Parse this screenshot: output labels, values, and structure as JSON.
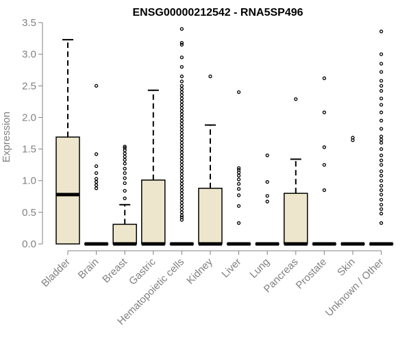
{
  "chart_data": {
    "type": "boxplot",
    "title": "ENSG00000212542 - RNA5SP496",
    "ylabel": "Expression",
    "xlabel": "",
    "ylim": [
      0,
      3.5
    ],
    "yticks": [
      "0.0",
      "0.5",
      "1.0",
      "1.5",
      "2.0",
      "2.5",
      "3.0",
      "3.5"
    ],
    "grid": false,
    "colors": {
      "box_fill": "#ede6cc",
      "stroke": "#000000",
      "axis_text": "#808080",
      "title_text": "#000000"
    },
    "categories": [
      "Bladder",
      "Brain",
      "Breast",
      "Gastric",
      "Hematopoietic cells",
      "Kidney",
      "Liver",
      "Lung",
      "Pancreas",
      "Prostate",
      "Skin",
      "Unknown / Other"
    ],
    "boxes": [
      {
        "min": 0,
        "q1": 0,
        "median": 0.78,
        "q3": 1.69,
        "max": 3.23,
        "outliers": []
      },
      {
        "min": 0,
        "q1": 0,
        "median": 0,
        "q3": 0,
        "max": 0,
        "outliers": [
          0.88,
          0.93,
          0.98,
          1.03,
          1.12,
          1.23,
          1.42,
          2.5
        ]
      },
      {
        "min": 0,
        "q1": 0,
        "median": 0,
        "q3": 0.31,
        "max": 0.62,
        "outliers": [
          0.72,
          0.84,
          0.96,
          1.04,
          1.12,
          1.19,
          1.27,
          1.33,
          1.38,
          1.43,
          1.48,
          1.52,
          1.54
        ]
      },
      {
        "min": 0,
        "q1": 0,
        "median": 0,
        "q3": 1.01,
        "max": 2.43,
        "outliers": []
      },
      {
        "min": 0,
        "q1": 0,
        "median": 0,
        "q3": 0,
        "max": 0,
        "outliers": [
          0.38,
          0.42,
          0.45,
          0.5,
          0.55,
          0.6,
          0.65,
          0.7,
          0.75,
          0.8,
          0.85,
          0.9,
          0.95,
          1.0,
          1.05,
          1.1,
          1.15,
          1.2,
          1.25,
          1.3,
          1.35,
          1.4,
          1.45,
          1.5,
          1.55,
          1.6,
          1.65,
          1.7,
          1.75,
          1.8,
          1.85,
          1.9,
          1.95,
          2.0,
          2.05,
          2.1,
          2.15,
          2.2,
          2.25,
          2.3,
          2.35,
          2.4,
          2.45,
          2.5,
          2.57,
          2.65,
          2.8,
          2.95,
          3.15,
          3.18,
          3.4
        ]
      },
      {
        "min": 0,
        "q1": 0,
        "median": 0,
        "q3": 0.88,
        "max": 1.88,
        "outliers": [
          2.65
        ]
      },
      {
        "min": 0,
        "q1": 0,
        "median": 0,
        "q3": 0,
        "max": 0,
        "outliers": [
          0.33,
          0.6,
          0.77,
          0.87,
          0.95,
          1.02,
          1.08,
          1.13,
          1.17,
          1.2,
          2.4
        ]
      },
      {
        "min": 0,
        "q1": 0,
        "median": 0,
        "q3": 0,
        "max": 0,
        "outliers": [
          0.67,
          0.76,
          0.98,
          1.4
        ]
      },
      {
        "min": 0,
        "q1": 0,
        "median": 0,
        "q3": 0.8,
        "max": 1.34,
        "outliers": [
          2.29
        ]
      },
      {
        "min": 0,
        "q1": 0,
        "median": 0,
        "q3": 0,
        "max": 0,
        "outliers": [
          0.85,
          1.25,
          1.53,
          2.08,
          2.62
        ]
      },
      {
        "min": 0,
        "q1": 0,
        "median": 0,
        "q3": 0,
        "max": 0,
        "outliers": [
          1.64,
          1.68
        ]
      },
      {
        "min": 0,
        "q1": 0,
        "median": 0,
        "q3": 0,
        "max": 0,
        "outliers": [
          0.33,
          0.48,
          0.55,
          0.62,
          0.7,
          0.78,
          0.85,
          0.92,
          1.0,
          1.08,
          1.15,
          1.25,
          1.32,
          1.4,
          1.5,
          1.6,
          1.65,
          1.7,
          1.82,
          1.95,
          2.08,
          2.2,
          2.3,
          2.42,
          2.5,
          2.58,
          2.72,
          2.85,
          3.0,
          3.36
        ]
      }
    ]
  }
}
